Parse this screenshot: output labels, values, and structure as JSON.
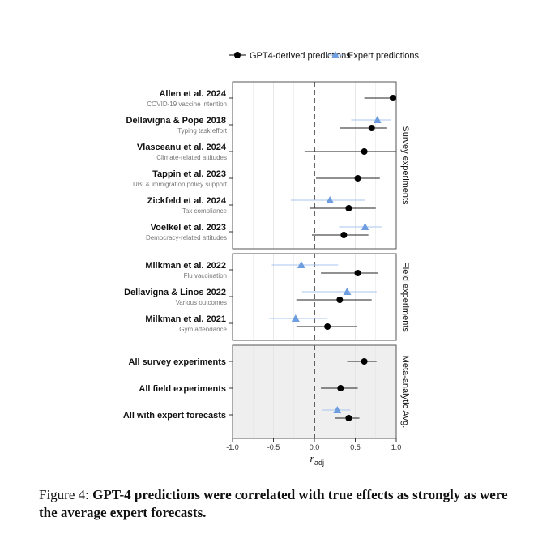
{
  "chart_data": {
    "type": "scatter",
    "subtype": "forest-plot",
    "legend": {
      "position": "top",
      "entries": [
        {
          "label": "GPT4-derived predictions",
          "marker": "circle",
          "color": "#000000"
        },
        {
          "label": "Expert predictions",
          "marker": "triangle",
          "color": "#6f9ee0"
        }
      ]
    },
    "xlabel_main": "r",
    "xlabel_sub": "adj",
    "xlim": [
      -1.0,
      1.0
    ],
    "xticks": [
      "-1.0",
      "-0.5",
      "0.0",
      "0.5",
      "1.0"
    ],
    "reference_line_x": 0,
    "grid": true,
    "panels": [
      {
        "label": "Survey experiments",
        "shaded": false,
        "rows": [
          {
            "title": "Allen et al. 2024",
            "subtitle": "COVID-19 vaccine intention",
            "gpt": {
              "est": 0.96,
              "lo": 0.61,
              "hi": 1.0
            },
            "expert": null
          },
          {
            "title": "Dellavigna & Pope 2018",
            "subtitle": "Typing task effort",
            "gpt": {
              "est": 0.7,
              "lo": 0.31,
              "hi": 0.88
            },
            "expert": {
              "est": 0.77,
              "lo": 0.45,
              "hi": 0.93
            }
          },
          {
            "title": "Vlasceanu et al. 2024",
            "subtitle": "Climate-related attitudes",
            "gpt": {
              "est": 0.61,
              "lo": -0.12,
              "hi": 1.0
            },
            "expert": null
          },
          {
            "title": "Tappin et al. 2023",
            "subtitle": "UBI & immigration policy support",
            "gpt": {
              "est": 0.53,
              "lo": 0.02,
              "hi": 0.8
            },
            "expert": null
          },
          {
            "title": "Zickfeld et al. 2024",
            "subtitle": "Tax compliance",
            "gpt": {
              "est": 0.42,
              "lo": -0.06,
              "hi": 0.75
            },
            "expert": {
              "est": 0.19,
              "lo": -0.29,
              "hi": 0.62
            }
          },
          {
            "title": "Voelkel et al. 2023",
            "subtitle": "Democracy-related attitudes",
            "gpt": {
              "est": 0.36,
              "lo": -0.03,
              "hi": 0.66
            },
            "expert": {
              "est": 0.62,
              "lo": 0.3,
              "hi": 0.82
            }
          }
        ]
      },
      {
        "label": "Field experiments",
        "shaded": false,
        "rows": [
          {
            "title": "Milkman et al. 2022",
            "subtitle": "Flu vaccination",
            "gpt": {
              "est": 0.53,
              "lo": 0.08,
              "hi": 0.78
            },
            "expert": {
              "est": -0.16,
              "lo": -0.52,
              "hi": 0.29
            }
          },
          {
            "title": "Dellavigna & Linos 2022",
            "subtitle": "Various outcomes",
            "gpt": {
              "est": 0.31,
              "lo": -0.22,
              "hi": 0.7
            },
            "expert": {
              "est": 0.4,
              "lo": -0.15,
              "hi": 0.76
            }
          },
          {
            "title": "Milkman et al. 2021",
            "subtitle": "Gym attendance",
            "gpt": {
              "est": 0.16,
              "lo": -0.22,
              "hi": 0.52
            },
            "expert": {
              "est": -0.23,
              "lo": -0.55,
              "hi": 0.16
            }
          }
        ]
      },
      {
        "label": "Meta-analytic Avg.",
        "shaded": true,
        "rows": [
          {
            "title": "All survey experiments",
            "subtitle": "",
            "gpt": {
              "est": 0.61,
              "lo": 0.4,
              "hi": 0.76
            },
            "expert": null
          },
          {
            "title": "All field experiments",
            "subtitle": "",
            "gpt": {
              "est": 0.32,
              "lo": 0.08,
              "hi": 0.53
            },
            "expert": null
          },
          {
            "title": "All with expert forecasts",
            "subtitle": "",
            "gpt": {
              "est": 0.42,
              "lo": 0.25,
              "hi": 0.55
            },
            "expert": {
              "est": 0.28,
              "lo": 0.1,
              "hi": 0.44
            }
          }
        ]
      }
    ]
  },
  "caption": {
    "prefix": "Figure 4: ",
    "text": "GPT-4 predictions were correlated with true effects as strongly as were the average expert forecasts."
  },
  "colors": {
    "gpt": "#000000",
    "expert": "#6f9ee0",
    "expert_line": "#a9c4ef",
    "panel_border": "#555555",
    "shaded_panel": "#efefef",
    "grid": "#e3e3e3",
    "subtitle_text": "#777777"
  }
}
